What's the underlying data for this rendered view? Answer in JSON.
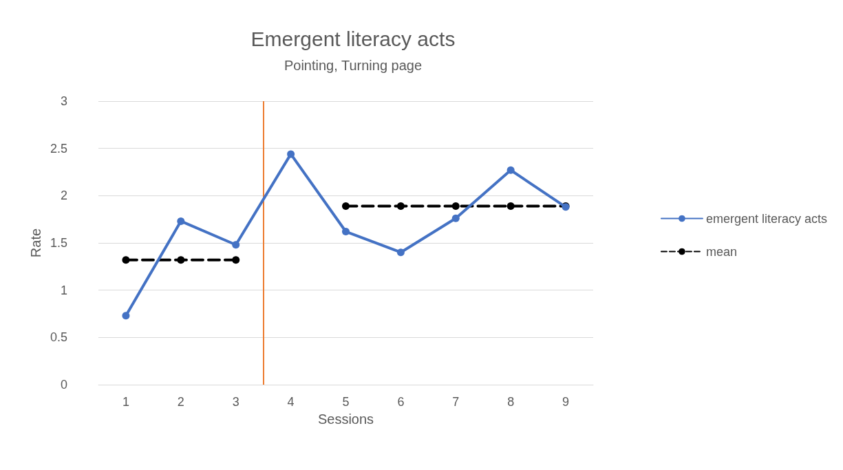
{
  "chart_data": {
    "type": "line",
    "title": "Emergent literacy acts",
    "subtitle": "Pointing, Turning page",
    "xlabel": "Sessions",
    "ylabel": "Rate",
    "x": [
      1,
      2,
      3,
      4,
      5,
      6,
      7,
      8,
      9
    ],
    "xlim": [
      0.5,
      9.5
    ],
    "xticks": [
      1,
      2,
      3,
      4,
      5,
      6,
      7,
      8,
      9
    ],
    "ylim": [
      0,
      3
    ],
    "yticks": [
      0,
      0.5,
      1,
      1.5,
      2,
      2.5,
      3
    ],
    "grid": "y",
    "legend": "right",
    "marker": "circle",
    "series": [
      {
        "name": "emergent literacy acts",
        "color": "#4472c4",
        "line_style": "solid",
        "values": [
          0.73,
          1.73,
          1.48,
          2.44,
          1.62,
          1.4,
          1.76,
          2.27,
          1.88
        ]
      },
      {
        "name": "mean",
        "color": "#000000",
        "line_style": "dashed",
        "values": [
          1.32,
          1.32,
          1.32,
          null,
          1.89,
          1.89,
          1.89,
          1.89,
          1.89
        ]
      }
    ],
    "ref_lines": [
      {
        "axis": "x",
        "value": 3.5,
        "color": "#ed7d31",
        "line_style": "solid"
      }
    ]
  }
}
